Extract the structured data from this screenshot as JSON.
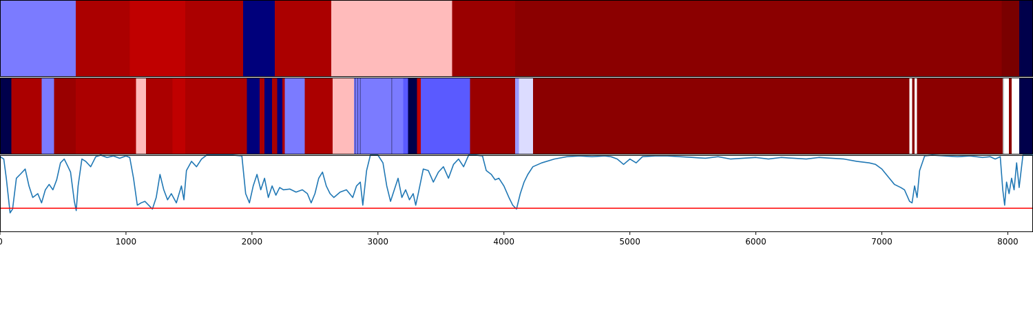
{
  "chart_data": {
    "type": "heatmap",
    "xlim": [
      0,
      8200
    ],
    "x_ticks": [
      "0",
      "1000",
      "2000",
      "3000",
      "4000",
      "5000",
      "6000",
      "7000",
      "8000"
    ],
    "x_tick_values": [
      0,
      1000,
      2000,
      3000,
      4000,
      5000,
      6000,
      7000,
      8000
    ],
    "segmentation_top": [
      {
        "start": 0,
        "end": 600,
        "color": "#7b7bff"
      },
      {
        "start": 600,
        "end": 1030,
        "color": "#ab0000"
      },
      {
        "start": 1030,
        "end": 1470,
        "color": "#c00000"
      },
      {
        "start": 1470,
        "end": 1930,
        "color": "#ab0000"
      },
      {
        "start": 1930,
        "end": 2180,
        "color": "#00007b"
      },
      {
        "start": 2180,
        "end": 2630,
        "color": "#ab0000"
      },
      {
        "start": 2630,
        "end": 3590,
        "color": "#ffbbbb"
      },
      {
        "start": 3590,
        "end": 4090,
        "color": "#9a0000"
      },
      {
        "start": 4090,
        "end": 7950,
        "color": "#8b0000"
      },
      {
        "start": 7950,
        "end": 8090,
        "color": "#7a0000"
      },
      {
        "start": 8090,
        "end": 8200,
        "color": "#00004b"
      }
    ],
    "segmentation_bottom": [
      {
        "start": 0,
        "end": 90,
        "color": "#00004b"
      },
      {
        "start": 90,
        "end": 330,
        "color": "#ab0000"
      },
      {
        "start": 330,
        "end": 430,
        "color": "#7b7bff"
      },
      {
        "start": 430,
        "end": 600,
        "color": "#9a0000"
      },
      {
        "start": 600,
        "end": 1080,
        "color": "#ab0000"
      },
      {
        "start": 1080,
        "end": 1160,
        "color": "#ffbbbb"
      },
      {
        "start": 1160,
        "end": 1370,
        "color": "#ab0000"
      },
      {
        "start": 1370,
        "end": 1470,
        "color": "#c00000"
      },
      {
        "start": 1470,
        "end": 1960,
        "color": "#ab0000"
      },
      {
        "start": 1960,
        "end": 2060,
        "color": "#00007b"
      },
      {
        "start": 2060,
        "end": 2100,
        "color": "#ab0000"
      },
      {
        "start": 2100,
        "end": 2160,
        "color": "#00007b"
      },
      {
        "start": 2160,
        "end": 2200,
        "color": "#ab0000"
      },
      {
        "start": 2200,
        "end": 2240,
        "color": "#00007b"
      },
      {
        "start": 2240,
        "end": 2260,
        "color": "#ab0000"
      },
      {
        "start": 2260,
        "end": 2420,
        "color": "#7b7bff"
      },
      {
        "start": 2420,
        "end": 2640,
        "color": "#ab0000"
      },
      {
        "start": 2640,
        "end": 2810,
        "color": "#ffbbbb"
      },
      {
        "start": 2810,
        "end": 2880,
        "color": "#7b7bff"
      },
      {
        "start": 2880,
        "end": 3100,
        "color": "#7b7bff"
      },
      {
        "start": 3100,
        "end": 3200,
        "color": "#7b7bff"
      },
      {
        "start": 3200,
        "end": 3240,
        "color": "#5a5aff"
      },
      {
        "start": 3240,
        "end": 3310,
        "color": "#00004b"
      },
      {
        "start": 3310,
        "end": 3340,
        "color": "#c00000"
      },
      {
        "start": 3340,
        "end": 3730,
        "color": "#5a5aff"
      },
      {
        "start": 3730,
        "end": 4090,
        "color": "#9a0000"
      },
      {
        "start": 4090,
        "end": 4120,
        "color": "#9a9aff"
      },
      {
        "start": 4120,
        "end": 4230,
        "color": "#dcdcff"
      },
      {
        "start": 4230,
        "end": 7220,
        "color": "#8b0000"
      },
      {
        "start": 7220,
        "end": 7240,
        "color": "#ffffff"
      },
      {
        "start": 7240,
        "end": 7260,
        "color": "#8b0000"
      },
      {
        "start": 7260,
        "end": 7280,
        "color": "#ffffff"
      },
      {
        "start": 7280,
        "end": 7960,
        "color": "#8b0000"
      },
      {
        "start": 7960,
        "end": 8010,
        "color": "#ffffff"
      },
      {
        "start": 8010,
        "end": 8030,
        "color": "#8b0000"
      },
      {
        "start": 8030,
        "end": 8090,
        "color": "#ffffff"
      },
      {
        "start": 8090,
        "end": 8200,
        "color": "#00004b"
      }
    ],
    "segmentation_bottom_thin_lines": [
      2820,
      2840,
      2860,
      3110,
      7965
    ],
    "signal": {
      "ylim": [
        0,
        1
      ],
      "threshold": 0.31,
      "threshold_color": "#ff0000",
      "line_color": "#1f77b4",
      "points": [
        [
          0,
          0.98
        ],
        [
          30,
          0.95
        ],
        [
          50,
          0.7
        ],
        [
          80,
          0.25
        ],
        [
          100,
          0.3
        ],
        [
          130,
          0.7
        ],
        [
          160,
          0.75
        ],
        [
          200,
          0.82
        ],
        [
          230,
          0.6
        ],
        [
          260,
          0.45
        ],
        [
          300,
          0.5
        ],
        [
          330,
          0.38
        ],
        [
          360,
          0.55
        ],
        [
          390,
          0.62
        ],
        [
          420,
          0.55
        ],
        [
          450,
          0.68
        ],
        [
          480,
          0.9
        ],
        [
          510,
          0.95
        ],
        [
          540,
          0.85
        ],
        [
          560,
          0.78
        ],
        [
          590,
          0.4
        ],
        [
          605,
          0.28
        ],
        [
          620,
          0.6
        ],
        [
          650,
          0.95
        ],
        [
          680,
          0.92
        ],
        [
          720,
          0.85
        ],
        [
          760,
          0.98
        ],
        [
          800,
          1.0
        ],
        [
          850,
          0.97
        ],
        [
          900,
          0.99
        ],
        [
          950,
          0.96
        ],
        [
          1000,
          0.99
        ],
        [
          1030,
          0.97
        ],
        [
          1060,
          0.7
        ],
        [
          1090,
          0.35
        ],
        [
          1120,
          0.38
        ],
        [
          1150,
          0.4
        ],
        [
          1180,
          0.35
        ],
        [
          1210,
          0.3
        ],
        [
          1240,
          0.45
        ],
        [
          1270,
          0.75
        ],
        [
          1300,
          0.55
        ],
        [
          1330,
          0.42
        ],
        [
          1360,
          0.5
        ],
        [
          1400,
          0.38
        ],
        [
          1440,
          0.6
        ],
        [
          1460,
          0.42
        ],
        [
          1480,
          0.8
        ],
        [
          1520,
          0.92
        ],
        [
          1560,
          0.85
        ],
        [
          1600,
          0.95
        ],
        [
          1640,
          1.0
        ],
        [
          1700,
          1.0
        ],
        [
          1780,
          1.0
        ],
        [
          1850,
          1.0
        ],
        [
          1920,
          0.99
        ],
        [
          1950,
          0.5
        ],
        [
          1980,
          0.38
        ],
        [
          2010,
          0.6
        ],
        [
          2040,
          0.75
        ],
        [
          2070,
          0.55
        ],
        [
          2100,
          0.7
        ],
        [
          2130,
          0.45
        ],
        [
          2160,
          0.6
        ],
        [
          2190,
          0.48
        ],
        [
          2220,
          0.58
        ],
        [
          2250,
          0.55
        ],
        [
          2300,
          0.56
        ],
        [
          2350,
          0.52
        ],
        [
          2400,
          0.55
        ],
        [
          2440,
          0.5
        ],
        [
          2470,
          0.38
        ],
        [
          2500,
          0.5
        ],
        [
          2530,
          0.7
        ],
        [
          2560,
          0.78
        ],
        [
          2590,
          0.6
        ],
        [
          2620,
          0.5
        ],
        [
          2650,
          0.45
        ],
        [
          2700,
          0.52
        ],
        [
          2750,
          0.55
        ],
        [
          2800,
          0.45
        ],
        [
          2830,
          0.6
        ],
        [
          2860,
          0.65
        ],
        [
          2880,
          0.35
        ],
        [
          2910,
          0.8
        ],
        [
          2940,
          1.0
        ],
        [
          3000,
          1.0
        ],
        [
          3040,
          0.9
        ],
        [
          3070,
          0.6
        ],
        [
          3100,
          0.4
        ],
        [
          3130,
          0.55
        ],
        [
          3160,
          0.7
        ],
        [
          3190,
          0.45
        ],
        [
          3220,
          0.55
        ],
        [
          3250,
          0.42
        ],
        [
          3280,
          0.5
        ],
        [
          3300,
          0.35
        ],
        [
          3320,
          0.5
        ],
        [
          3360,
          0.82
        ],
        [
          3400,
          0.8
        ],
        [
          3440,
          0.65
        ],
        [
          3480,
          0.78
        ],
        [
          3520,
          0.85
        ],
        [
          3560,
          0.7
        ],
        [
          3600,
          0.88
        ],
        [
          3640,
          0.95
        ],
        [
          3680,
          0.85
        ],
        [
          3720,
          1.0
        ],
        [
          3780,
          1.0
        ],
        [
          3830,
          0.99
        ],
        [
          3860,
          0.8
        ],
        [
          3900,
          0.75
        ],
        [
          3930,
          0.68
        ],
        [
          3960,
          0.7
        ],
        [
          4000,
          0.6
        ],
        [
          4040,
          0.45
        ],
        [
          4070,
          0.35
        ],
        [
          4100,
          0.3
        ],
        [
          4130,
          0.5
        ],
        [
          4160,
          0.65
        ],
        [
          4190,
          0.75
        ],
        [
          4230,
          0.85
        ],
        [
          4300,
          0.9
        ],
        [
          4400,
          0.95
        ],
        [
          4500,
          0.98
        ],
        [
          4600,
          0.99
        ],
        [
          4700,
          0.98
        ],
        [
          4800,
          0.99
        ],
        [
          4850,
          0.98
        ],
        [
          4900,
          0.95
        ],
        [
          4950,
          0.88
        ],
        [
          5000,
          0.95
        ],
        [
          5050,
          0.9
        ],
        [
          5100,
          0.98
        ],
        [
          5200,
          0.99
        ],
        [
          5300,
          0.99
        ],
        [
          5400,
          0.98
        ],
        [
          5500,
          0.97
        ],
        [
          5600,
          0.96
        ],
        [
          5700,
          0.98
        ],
        [
          5800,
          0.95
        ],
        [
          5900,
          0.96
        ],
        [
          6000,
          0.97
        ],
        [
          6100,
          0.95
        ],
        [
          6200,
          0.97
        ],
        [
          6300,
          0.96
        ],
        [
          6400,
          0.95
        ],
        [
          6500,
          0.97
        ],
        [
          6600,
          0.96
        ],
        [
          6700,
          0.95
        ],
        [
          6800,
          0.92
        ],
        [
          6900,
          0.9
        ],
        [
          6950,
          0.88
        ],
        [
          7000,
          0.82
        ],
        [
          7050,
          0.72
        ],
        [
          7100,
          0.62
        ],
        [
          7150,
          0.58
        ],
        [
          7180,
          0.55
        ],
        [
          7220,
          0.4
        ],
        [
          7240,
          0.38
        ],
        [
          7260,
          0.6
        ],
        [
          7280,
          0.45
        ],
        [
          7300,
          0.8
        ],
        [
          7340,
          0.99
        ],
        [
          7400,
          1.0
        ],
        [
          7500,
          0.99
        ],
        [
          7600,
          0.98
        ],
        [
          7700,
          0.99
        ],
        [
          7800,
          0.97
        ],
        [
          7860,
          0.98
        ],
        [
          7900,
          0.95
        ],
        [
          7940,
          0.98
        ],
        [
          7960,
          0.55
        ],
        [
          7975,
          0.35
        ],
        [
          7990,
          0.65
        ],
        [
          8010,
          0.5
        ],
        [
          8030,
          0.7
        ],
        [
          8050,
          0.55
        ],
        [
          8070,
          0.9
        ],
        [
          8090,
          0.58
        ],
        [
          8120,
          1.0
        ],
        [
          8200,
          1.0
        ]
      ]
    }
  }
}
